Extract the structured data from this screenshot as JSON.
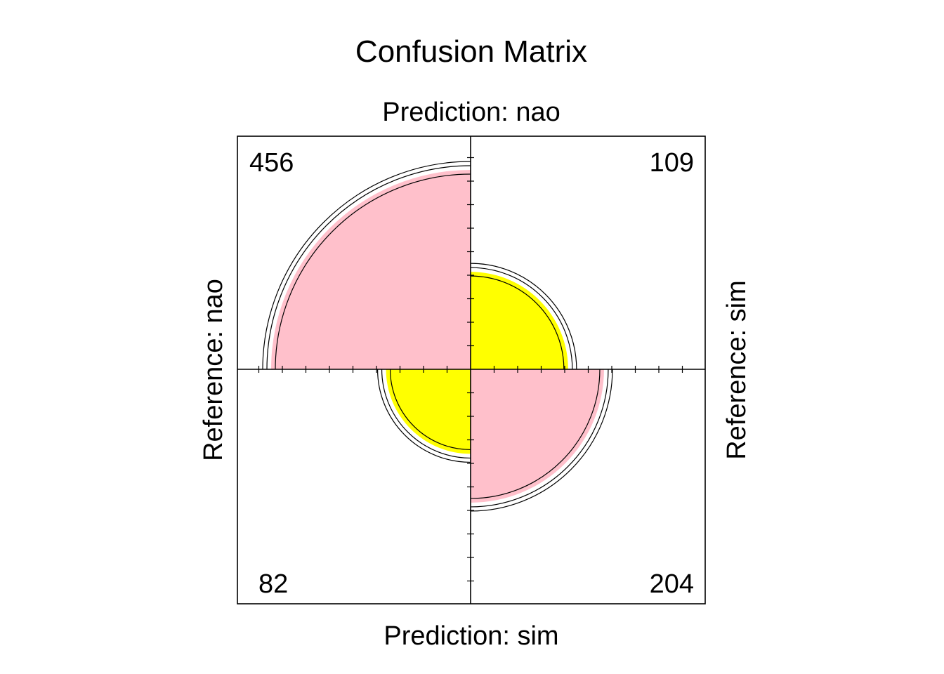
{
  "chart_data": {
    "type": "fourfold",
    "title": "Confusion Matrix",
    "top_label": "Prediction: nao",
    "bottom_label": "Prediction: sim",
    "left_label": "Reference: nao",
    "right_label": "Reference: sim",
    "cells": [
      {
        "quadrant": "top-left",
        "reference": "nao",
        "prediction": "nao",
        "value": 456,
        "color": "#ffc0cb"
      },
      {
        "quadrant": "top-right",
        "reference": "sim",
        "prediction": "nao",
        "value": 109,
        "color": "#ffff00"
      },
      {
        "quadrant": "bottom-left",
        "reference": "nao",
        "prediction": "sim",
        "value": 82,
        "color": "#ffff00"
      },
      {
        "quadrant": "bottom-right",
        "reference": "sim",
        "prediction": "sim",
        "value": 204,
        "color": "#ffc0cb"
      }
    ],
    "confidence_rings": true,
    "axis_ticks": true
  }
}
